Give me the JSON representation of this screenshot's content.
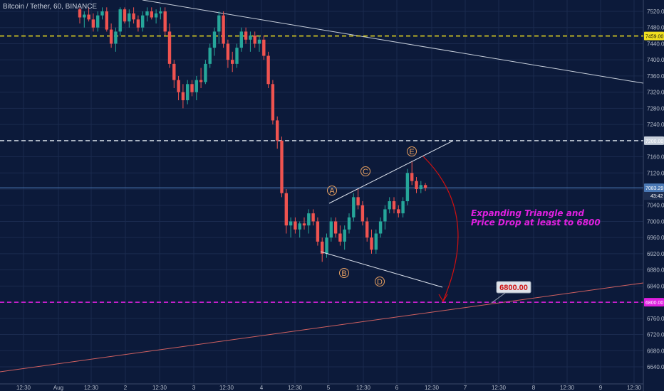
{
  "header": {
    "title": "Bitcoin / Tether, 60, BINANCE"
  },
  "chart_data": {
    "type": "candlestick",
    "ylim": [
      6600,
      7540
    ],
    "y_ticks": [
      7520,
      7480,
      7440,
      7400,
      7360,
      7320,
      7280,
      7240,
      7200,
      7160,
      7120,
      7080,
      7040,
      7000,
      6960,
      6920,
      6880,
      6840,
      6800,
      6760,
      6720,
      6680,
      6640
    ],
    "y_tick_labels": [
      "7520.00",
      "7480.00",
      "7440.00",
      "7400.00",
      "7360.00",
      "7320.00",
      "7280.00",
      "7240.00",
      "7200.00",
      "7160.00",
      "7120.00",
      "7080.00",
      "7040.00",
      "7000.00",
      "6960.00",
      "6920.00",
      "6880.00",
      "6840.00",
      "6800.00",
      "6760.00",
      "6720.00",
      "6680.00",
      "6640.00"
    ],
    "x_tick_labels": [
      "12:30",
      "Aug",
      "12:30",
      "2",
      "12:30",
      "3",
      "12:30",
      "4",
      "12:30",
      "5",
      "12:30",
      "6",
      "12:30",
      "7",
      "12:30",
      "8",
      "12:30",
      "9",
      "12:30"
    ],
    "price_levels": [
      {
        "price": 7459,
        "label": "7459.00",
        "color": "#f0e020",
        "style": "dashed"
      },
      {
        "price": 7200,
        "label": "7200.00",
        "color": "#c8d0dc",
        "style": "dashed"
      },
      {
        "price": 7083.29,
        "label": "7083.29",
        "color": "#4a78b4",
        "style": "solid"
      },
      {
        "price": 6800,
        "label": "6800.00",
        "color": "#e020e0",
        "style": "dashed"
      }
    ],
    "countdown": "43:42",
    "wave_labels": [
      "A",
      "B",
      "C",
      "D",
      "E"
    ],
    "annotation_lines": [
      "Expanding Triangle       and",
      "Price Drop at least to 6800"
    ],
    "target_callout": "6800.00",
    "colors": {
      "up": "#26a69a",
      "down": "#ef5350",
      "background": "#0c1a3a",
      "magenta": "#e020e0",
      "yellow": "#f0e020"
    },
    "candles_ohlc": [
      [
        7525,
        7530,
        7490,
        7505
      ],
      [
        7505,
        7520,
        7480,
        7512
      ],
      [
        7512,
        7530,
        7495,
        7500
      ],
      [
        7500,
        7515,
        7470,
        7480
      ],
      [
        7480,
        7520,
        7470,
        7510
      ],
      [
        7510,
        7530,
        7500,
        7520
      ],
      [
        7520,
        7530,
        7470,
        7475
      ],
      [
        7475,
        7490,
        7430,
        7440
      ],
      [
        7440,
        7480,
        7420,
        7470
      ],
      [
        7470,
        7530,
        7460,
        7525
      ],
      [
        7525,
        7530,
        7490,
        7495
      ],
      [
        7495,
        7525,
        7480,
        7515
      ],
      [
        7515,
        7530,
        7490,
        7500
      ],
      [
        7500,
        7510,
        7470,
        7480
      ],
      [
        7480,
        7520,
        7470,
        7510
      ],
      [
        7510,
        7530,
        7495,
        7520
      ],
      [
        7520,
        7530,
        7500,
        7505
      ],
      [
        7505,
        7525,
        7490,
        7515
      ],
      [
        7515,
        7530,
        7500,
        7520
      ],
      [
        7520,
        7530,
        7460,
        7470
      ],
      [
        7470,
        7490,
        7380,
        7390
      ],
      [
        7390,
        7400,
        7330,
        7350
      ],
      [
        7350,
        7360,
        7300,
        7320
      ],
      [
        7320,
        7340,
        7280,
        7300
      ],
      [
        7300,
        7350,
        7290,
        7340
      ],
      [
        7340,
        7350,
        7310,
        7320
      ],
      [
        7320,
        7360,
        7300,
        7350
      ],
      [
        7350,
        7380,
        7330,
        7345
      ],
      [
        7345,
        7400,
        7340,
        7390
      ],
      [
        7390,
        7440,
        7380,
        7430
      ],
      [
        7430,
        7480,
        7410,
        7470
      ],
      [
        7470,
        7520,
        7440,
        7510
      ],
      [
        7510,
        7520,
        7430,
        7440
      ],
      [
        7440,
        7450,
        7380,
        7400
      ],
      [
        7400,
        7420,
        7370,
        7390
      ],
      [
        7390,
        7440,
        7380,
        7430
      ],
      [
        7430,
        7480,
        7420,
        7470
      ],
      [
        7470,
        7480,
        7440,
        7450
      ],
      [
        7450,
        7470,
        7420,
        7460
      ],
      [
        7460,
        7470,
        7430,
        7440
      ],
      [
        7440,
        7460,
        7420,
        7450
      ],
      [
        7450,
        7460,
        7400,
        7410
      ],
      [
        7410,
        7420,
        7330,
        7340
      ],
      [
        7340,
        7350,
        7240,
        7250
      ],
      [
        7250,
        7260,
        7180,
        7200
      ],
      [
        7200,
        7210,
        7060,
        7070
      ],
      [
        7070,
        7080,
        6970,
        6990
      ],
      [
        6990,
        7010,
        6960,
        7000
      ],
      [
        7000,
        7010,
        6970,
        6980
      ],
      [
        6980,
        7000,
        6960,
        6995
      ],
      [
        6995,
        7010,
        6980,
        6990
      ],
      [
        6990,
        7030,
        6970,
        7020
      ],
      [
        7020,
        7030,
        6990,
        7000
      ],
      [
        7000,
        7010,
        6940,
        6950
      ],
      [
        6950,
        6960,
        6900,
        6920
      ],
      [
        6920,
        6970,
        6910,
        6960
      ],
      [
        6960,
        7010,
        6950,
        7000
      ],
      [
        7000,
        7010,
        6960,
        6970
      ],
      [
        6970,
        6990,
        6940,
        6950
      ],
      [
        6950,
        6990,
        6930,
        6980
      ],
      [
        6980,
        7020,
        6970,
        7010
      ],
      [
        7010,
        7070,
        7000,
        7060
      ],
      [
        7060,
        7080,
        7030,
        7040
      ],
      [
        7040,
        7050,
        6990,
        7000
      ],
      [
        7000,
        7010,
        6950,
        6960
      ],
      [
        6960,
        6980,
        6920,
        6930
      ],
      [
        6930,
        6980,
        6920,
        6970
      ],
      [
        6970,
        7010,
        6960,
        7000
      ],
      [
        7000,
        7040,
        6980,
        7030
      ],
      [
        7030,
        7060,
        7020,
        7050
      ],
      [
        7050,
        7060,
        7020,
        7030
      ],
      [
        7030,
        7040,
        7010,
        7020
      ],
      [
        7020,
        7060,
        7010,
        7050
      ],
      [
        7050,
        7130,
        7040,
        7120
      ],
      [
        7120,
        7150,
        7090,
        7100
      ],
      [
        7100,
        7110,
        7070,
        7080
      ],
      [
        7080,
        7100,
        7070,
        7090
      ],
      [
        7090,
        7095,
        7075,
        7083
      ]
    ]
  }
}
